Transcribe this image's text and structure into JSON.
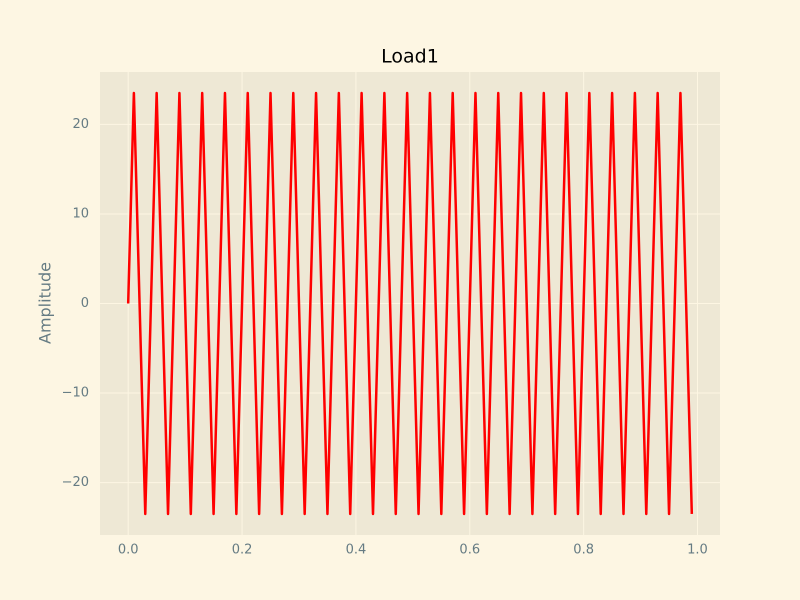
{
  "chart_data": {
    "type": "line",
    "title": "Load1",
    "y_label": "Amplitude",
    "x": [
      0,
      0.01,
      0.02,
      0.03,
      0.04,
      0.05,
      0.06,
      0.07,
      0.08,
      0.09,
      0.1,
      0.11,
      0.12,
      0.13,
      0.14,
      0.15,
      0.16,
      0.17,
      0.18,
      0.19,
      0.2,
      0.21,
      0.22,
      0.23,
      0.24,
      0.25,
      0.26,
      0.27,
      0.28,
      0.29,
      0.3,
      0.31,
      0.32,
      0.33,
      0.34,
      0.35,
      0.36,
      0.37,
      0.38,
      0.39,
      0.4,
      0.41,
      0.42,
      0.43,
      0.44,
      0.45,
      0.46,
      0.47,
      0.48,
      0.49,
      0.5,
      0.51,
      0.52,
      0.53,
      0.54,
      0.55,
      0.56,
      0.57,
      0.58,
      0.59,
      0.6,
      0.61,
      0.62,
      0.63,
      0.64,
      0.65,
      0.66,
      0.67,
      0.68,
      0.69,
      0.7,
      0.71,
      0.72,
      0.73,
      0.74,
      0.75,
      0.76,
      0.77,
      0.78,
      0.79,
      0.8,
      0.81,
      0.82,
      0.83,
      0.84,
      0.85,
      0.86,
      0.87,
      0.88,
      0.89,
      0.9,
      0.91,
      0.92,
      0.93,
      0.94,
      0.95,
      0.96,
      0.97,
      0.98,
      0.99
    ],
    "series": [
      {
        "name": "Load1",
        "color": "#ff0000",
        "values": [
          0,
          23.5,
          0,
          -23.5,
          0,
          23.5,
          0,
          -23.5,
          0,
          23.5,
          0,
          -23.5,
          0,
          23.5,
          0,
          -23.5,
          0,
          23.5,
          0,
          -23.5,
          0,
          23.5,
          0,
          -23.5,
          0,
          23.5,
          0,
          -23.5,
          0,
          23.5,
          0,
          -23.5,
          0,
          23.5,
          0,
          -23.5,
          0,
          23.5,
          0,
          -23.5,
          0,
          23.5,
          0,
          -23.5,
          0,
          23.5,
          0,
          -23.5,
          0,
          23.5,
          0,
          -23.5,
          0,
          23.5,
          0,
          -23.5,
          0,
          23.5,
          0,
          -23.5,
          0,
          23.5,
          0,
          -23.5,
          0,
          23.5,
          0,
          -23.5,
          0,
          23.5,
          0,
          -23.5,
          0,
          23.5,
          0,
          -23.5,
          0,
          23.5,
          0,
          -23.5,
          0,
          23.5,
          0,
          -23.5,
          0,
          23.5,
          0,
          -23.5,
          0,
          23.5,
          0,
          -23.5,
          0,
          23.5,
          0,
          -23.5,
          0,
          23.5,
          0,
          -23.5
        ]
      }
    ],
    "xlim": [
      -0.0495,
      1.0395
    ],
    "ylim": [
      -25.85,
      25.85
    ],
    "xticks": [
      {
        "value": 0,
        "label": "0.0"
      },
      0.2,
      0.4,
      0.6,
      0.8,
      {
        "value": 1,
        "label": "1.0"
      }
    ],
    "yticks": [
      {
        "value": -20,
        "label": "−20"
      },
      {
        "value": -10,
        "label": "−10"
      },
      0,
      10,
      20
    ],
    "grid": true
  }
}
